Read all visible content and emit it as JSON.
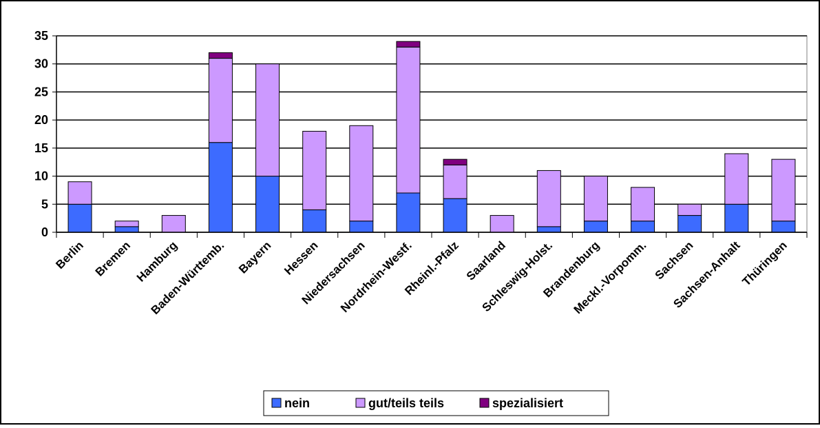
{
  "chart_data": {
    "type": "stacked_bar",
    "categories": [
      "Berlin",
      "Bremen",
      "Hamburg",
      "Baden-Württemb.",
      "Bayern",
      "Hessen",
      "Niedersachsen",
      "Nordrhein-Westf.",
      "Rheinl.-Pfalz",
      "Saarland",
      "Schleswig-Holst.",
      "Brandenburg",
      "Meckl.-Vorpomm.",
      "Sachsen",
      "Sachsen-Anhalt",
      "Thüringen"
    ],
    "series": [
      {
        "name": "nein",
        "color": "#3d6bff",
        "values": [
          5,
          1,
          0,
          16,
          10,
          4,
          2,
          7,
          6,
          0,
          1,
          2,
          2,
          3,
          5,
          2
        ]
      },
      {
        "name": "gut/teils teils",
        "color": "#cc99ff",
        "values": [
          4,
          1,
          3,
          15,
          20,
          14,
          17,
          26,
          6,
          3,
          10,
          8,
          6,
          2,
          9,
          11
        ]
      },
      {
        "name": "spezialisiert",
        "color": "#800080",
        "values": [
          0,
          0,
          0,
          1,
          0,
          0,
          0,
          1,
          1,
          0,
          0,
          0,
          0,
          0,
          0,
          0
        ]
      }
    ],
    "ylim": [
      0,
      35
    ],
    "yticks": [
      0,
      5,
      10,
      15,
      20,
      25,
      30,
      35
    ],
    "grid": true,
    "legend": "bottom"
  }
}
